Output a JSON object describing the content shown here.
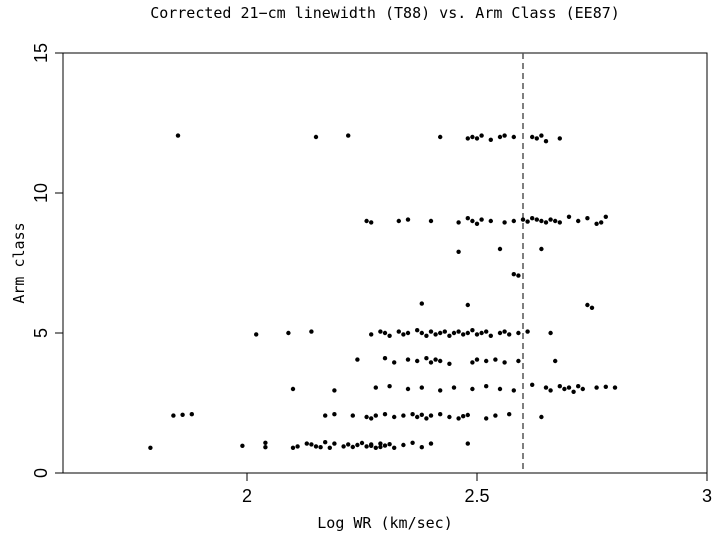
{
  "chart_data": {
    "type": "scatter",
    "title": "Corrected 21−cm linewidth (T88) vs. Arm Class (EE87)",
    "xlabel": "Log WR (km/sec)",
    "ylabel": "Arm class",
    "xlim": [
      1.6,
      3.0
    ],
    "ylim": [
      0,
      15
    ],
    "x_ticks": [
      2,
      2.5,
      3
    ],
    "x_tick_labels": [
      "2",
      "2.5",
      "3"
    ],
    "y_ticks": [
      0,
      5,
      10,
      15
    ],
    "y_tick_labels": [
      "0",
      "5",
      "10",
      "15"
    ],
    "grid": false,
    "reference_line": {
      "axis": "x",
      "value": 2.6,
      "style": "dashed"
    },
    "points": [
      [
        1.79,
        0.9
      ],
      [
        1.99,
        0.97
      ],
      [
        2.04,
        1.08
      ],
      [
        2.04,
        0.92
      ],
      [
        2.1,
        0.9
      ],
      [
        2.11,
        0.95
      ],
      [
        2.13,
        1.05
      ],
      [
        2.14,
        1.02
      ],
      [
        2.15,
        0.95
      ],
      [
        2.16,
        0.92
      ],
      [
        2.17,
        1.1
      ],
      [
        2.18,
        0.9
      ],
      [
        2.19,
        1.05
      ],
      [
        2.21,
        0.95
      ],
      [
        2.22,
        1.02
      ],
      [
        2.23,
        0.93
      ],
      [
        2.24,
        1.0
      ],
      [
        2.25,
        1.07
      ],
      [
        2.26,
        0.95
      ],
      [
        2.27,
        1.02
      ],
      [
        2.28,
        0.9
      ],
      [
        2.29,
        1.05
      ],
      [
        2.3,
        0.98
      ],
      [
        2.31,
        1.03
      ],
      [
        2.32,
        0.9
      ],
      [
        2.34,
        1.0
      ],
      [
        2.36,
        1.08
      ],
      [
        2.38,
        0.92
      ],
      [
        2.4,
        1.05
      ],
      [
        2.48,
        1.05
      ],
      [
        2.27,
        0.97
      ],
      [
        2.29,
        0.93
      ],
      [
        1.84,
        2.05
      ],
      [
        1.86,
        2.08
      ],
      [
        1.88,
        2.1
      ],
      [
        2.17,
        2.05
      ],
      [
        2.19,
        2.1
      ],
      [
        2.23,
        2.05
      ],
      [
        2.26,
        2.0
      ],
      [
        2.27,
        1.95
      ],
      [
        2.28,
        2.05
      ],
      [
        2.3,
        2.1
      ],
      [
        2.32,
        2.0
      ],
      [
        2.34,
        2.05
      ],
      [
        2.36,
        2.1
      ],
      [
        2.37,
        2.0
      ],
      [
        2.38,
        2.08
      ],
      [
        2.39,
        1.95
      ],
      [
        2.4,
        2.05
      ],
      [
        2.42,
        2.1
      ],
      [
        2.44,
        2.0
      ],
      [
        2.46,
        1.95
      ],
      [
        2.47,
        2.03
      ],
      [
        2.48,
        2.07
      ],
      [
        2.52,
        1.95
      ],
      [
        2.54,
        2.05
      ],
      [
        2.57,
        2.1
      ],
      [
        2.64,
        2.0
      ],
      [
        2.1,
        3.0
      ],
      [
        2.19,
        2.95
      ],
      [
        2.28,
        3.05
      ],
      [
        2.31,
        3.1
      ],
      [
        2.35,
        3.0
      ],
      [
        2.38,
        3.05
      ],
      [
        2.42,
        2.95
      ],
      [
        2.45,
        3.05
      ],
      [
        2.49,
        3.0
      ],
      [
        2.52,
        3.1
      ],
      [
        2.55,
        3.0
      ],
      [
        2.58,
        2.95
      ],
      [
        2.62,
        3.15
      ],
      [
        2.65,
        3.05
      ],
      [
        2.66,
        2.95
      ],
      [
        2.68,
        3.1
      ],
      [
        2.69,
        3.0
      ],
      [
        2.7,
        3.05
      ],
      [
        2.71,
        2.9
      ],
      [
        2.72,
        3.1
      ],
      [
        2.73,
        3.0
      ],
      [
        2.76,
        3.05
      ],
      [
        2.78,
        3.08
      ],
      [
        2.8,
        3.05
      ],
      [
        2.24,
        4.05
      ],
      [
        2.3,
        4.1
      ],
      [
        2.32,
        3.95
      ],
      [
        2.35,
        4.05
      ],
      [
        2.37,
        4.0
      ],
      [
        2.39,
        4.1
      ],
      [
        2.4,
        3.95
      ],
      [
        2.41,
        4.05
      ],
      [
        2.42,
        4.0
      ],
      [
        2.44,
        3.9
      ],
      [
        2.49,
        3.95
      ],
      [
        2.5,
        4.05
      ],
      [
        2.52,
        4.0
      ],
      [
        2.54,
        4.05
      ],
      [
        2.56,
        3.95
      ],
      [
        2.59,
        4.0
      ],
      [
        2.67,
        4.0
      ],
      [
        2.02,
        4.95
      ],
      [
        2.09,
        5.0
      ],
      [
        2.14,
        5.05
      ],
      [
        2.27,
        4.95
      ],
      [
        2.29,
        5.05
      ],
      [
        2.3,
        5.0
      ],
      [
        2.31,
        4.9
      ],
      [
        2.33,
        5.05
      ],
      [
        2.34,
        4.95
      ],
      [
        2.35,
        5.0
      ],
      [
        2.37,
        5.1
      ],
      [
        2.38,
        5.0
      ],
      [
        2.39,
        4.9
      ],
      [
        2.4,
        5.05
      ],
      [
        2.41,
        4.95
      ],
      [
        2.42,
        5.0
      ],
      [
        2.43,
        5.05
      ],
      [
        2.44,
        4.9
      ],
      [
        2.45,
        5.0
      ],
      [
        2.46,
        5.05
      ],
      [
        2.47,
        4.95
      ],
      [
        2.48,
        5.0
      ],
      [
        2.49,
        5.1
      ],
      [
        2.5,
        4.95
      ],
      [
        2.51,
        5.0
      ],
      [
        2.52,
        5.05
      ],
      [
        2.53,
        4.9
      ],
      [
        2.55,
        5.0
      ],
      [
        2.56,
        5.05
      ],
      [
        2.57,
        4.95
      ],
      [
        2.59,
        5.0
      ],
      [
        2.61,
        5.05
      ],
      [
        2.66,
        5.0
      ],
      [
        2.38,
        6.05
      ],
      [
        2.48,
        6.0
      ],
      [
        2.74,
        6.0
      ],
      [
        2.75,
        5.9
      ],
      [
        2.58,
        7.1
      ],
      [
        2.59,
        7.05
      ],
      [
        2.46,
        7.9
      ],
      [
        2.55,
        8.0
      ],
      [
        2.64,
        8.0
      ],
      [
        2.26,
        9.0
      ],
      [
        2.27,
        8.95
      ],
      [
        2.33,
        9.0
      ],
      [
        2.35,
        9.05
      ],
      [
        2.4,
        9.0
      ],
      [
        2.46,
        8.95
      ],
      [
        2.48,
        9.1
      ],
      [
        2.49,
        9.0
      ],
      [
        2.5,
        8.9
      ],
      [
        2.51,
        9.05
      ],
      [
        2.53,
        9.0
      ],
      [
        2.56,
        8.95
      ],
      [
        2.58,
        9.0
      ],
      [
        2.6,
        9.05
      ],
      [
        2.61,
        8.98
      ],
      [
        2.62,
        9.1
      ],
      [
        2.63,
        9.05
      ],
      [
        2.64,
        9.0
      ],
      [
        2.65,
        8.95
      ],
      [
        2.66,
        9.05
      ],
      [
        2.67,
        9.0
      ],
      [
        2.68,
        8.95
      ],
      [
        2.7,
        9.15
      ],
      [
        2.72,
        9.0
      ],
      [
        2.74,
        9.1
      ],
      [
        2.76,
        8.9
      ],
      [
        2.77,
        8.95
      ],
      [
        2.78,
        9.15
      ],
      [
        1.85,
        12.05
      ],
      [
        2.15,
        12.0
      ],
      [
        2.22,
        12.05
      ],
      [
        2.42,
        12.0
      ],
      [
        2.48,
        11.95
      ],
      [
        2.49,
        12.0
      ],
      [
        2.5,
        11.95
      ],
      [
        2.51,
        12.05
      ],
      [
        2.53,
        11.9
      ],
      [
        2.55,
        12.0
      ],
      [
        2.56,
        12.05
      ],
      [
        2.58,
        12.0
      ],
      [
        2.62,
        12.0
      ],
      [
        2.63,
        11.95
      ],
      [
        2.64,
        12.05
      ],
      [
        2.65,
        11.85
      ],
      [
        2.68,
        11.95
      ]
    ]
  }
}
